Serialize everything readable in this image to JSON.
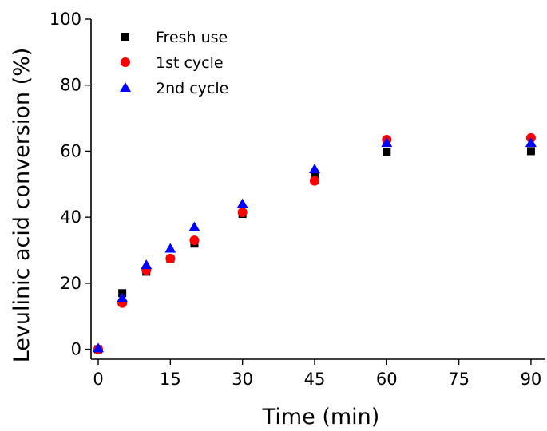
{
  "chart_data": {
    "type": "scatter",
    "title": "",
    "xlabel": "Time (min)",
    "ylabel": "Levulinic acid conversion (%)",
    "xlim": [
      -1.5,
      93
    ],
    "ylim": [
      -3,
      100
    ],
    "xticks": [
      0,
      15,
      30,
      45,
      60,
      75,
      90
    ],
    "yticks": [
      0,
      20,
      40,
      60,
      80,
      100
    ],
    "grid": false,
    "legend_position": "top-left",
    "series": [
      {
        "name": "Fresh use",
        "marker": "square",
        "color": "#000000",
        "points": [
          [
            0,
            0
          ],
          [
            5,
            17
          ],
          [
            10,
            23.5
          ],
          [
            15,
            27.5
          ],
          [
            20,
            32
          ],
          [
            30,
            41
          ],
          [
            45,
            52.5
          ],
          [
            60,
            59.8
          ],
          [
            90,
            60
          ]
        ]
      },
      {
        "name": "1st cycle",
        "marker": "circle",
        "color": "#ff0000",
        "points": [
          [
            0,
            0
          ],
          [
            5,
            14
          ],
          [
            10,
            24
          ],
          [
            15,
            27.5
          ],
          [
            20,
            33
          ],
          [
            30,
            41.5
          ],
          [
            45,
            51
          ],
          [
            60,
            63.5
          ],
          [
            90,
            64
          ]
        ]
      },
      {
        "name": "2nd cycle",
        "marker": "triangle",
        "color": "#0000ff",
        "points": [
          [
            0,
            0.3
          ],
          [
            5,
            15.5
          ],
          [
            10,
            25.5
          ],
          [
            15,
            30.5
          ],
          [
            20,
            37
          ],
          [
            30,
            44
          ],
          [
            45,
            54.5
          ],
          [
            60,
            62.5
          ],
          [
            90,
            62.5
          ]
        ]
      }
    ]
  }
}
